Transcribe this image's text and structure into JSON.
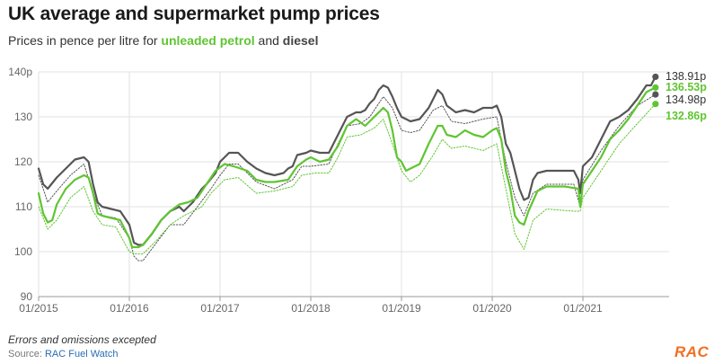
{
  "header": {
    "title": "UK average and supermarket pump prices",
    "subtitle_prefix": "Prices in pence per litre for ",
    "subtitle_petrol": "unleaded petrol",
    "subtitle_mid": " and ",
    "subtitle_diesel": "diesel"
  },
  "footer": {
    "note": "Errors and omissions excepted",
    "source_prefix": "Source: ",
    "source_link": "RAC Fuel Watch",
    "logo": "RAC"
  },
  "colors": {
    "diesel": "#555555",
    "petrol": "#5fc531",
    "grid": "#e2e2e2",
    "axis_text": "#666666"
  },
  "chart_data": {
    "type": "line",
    "xlim": [
      2015.0,
      2021.95
    ],
    "ylim": [
      90,
      140
    ],
    "x_ticks": [
      2015,
      2016,
      2017,
      2018,
      2019,
      2020,
      2021
    ],
    "x_tick_labels": [
      "01/2015",
      "01/2016",
      "01/2017",
      "01/2018",
      "01/2019",
      "01/2020",
      "01/2021"
    ],
    "y_ticks": [
      90,
      100,
      110,
      120,
      130,
      140
    ],
    "y_tick_labels": [
      "90",
      "100",
      "110",
      "120",
      "130",
      "140p"
    ],
    "grid": true,
    "end_labels": [
      {
        "text": "138.91p",
        "value": 138.91,
        "color": "#333333",
        "bold": false
      },
      {
        "text": "136.53p",
        "value": 136.53,
        "color": "#5fc531",
        "bold": true
      },
      {
        "text": "134.98p",
        "value": 134.98,
        "color": "#333333",
        "bold": false
      },
      {
        "text": "132.86p",
        "value": 132.86,
        "color": "#5fc531",
        "bold": true
      }
    ],
    "series": [
      {
        "key": "diesel_avg",
        "color": "#555555",
        "style": "solid",
        "width": 2.2,
        "points": [
          [
            2015.0,
            118.5
          ],
          [
            2015.05,
            115
          ],
          [
            2015.1,
            114
          ],
          [
            2015.2,
            116.5
          ],
          [
            2015.3,
            118.5
          ],
          [
            2015.4,
            120.5
          ],
          [
            2015.5,
            121
          ],
          [
            2015.55,
            120
          ],
          [
            2015.6,
            115
          ],
          [
            2015.65,
            111
          ],
          [
            2015.7,
            110
          ],
          [
            2015.8,
            109.5
          ],
          [
            2015.9,
            109
          ],
          [
            2016.0,
            106
          ],
          [
            2016.05,
            102
          ],
          [
            2016.1,
            101.5
          ],
          [
            2016.15,
            101.5
          ],
          [
            2016.25,
            104
          ],
          [
            2016.35,
            107
          ],
          [
            2016.45,
            109
          ],
          [
            2016.55,
            110
          ],
          [
            2016.6,
            109
          ],
          [
            2016.7,
            111
          ],
          [
            2016.8,
            114
          ],
          [
            2016.85,
            115
          ],
          [
            2016.95,
            117.5
          ],
          [
            2017.0,
            120
          ],
          [
            2017.1,
            122
          ],
          [
            2017.2,
            122
          ],
          [
            2017.3,
            120
          ],
          [
            2017.4,
            118.5
          ],
          [
            2017.5,
            117.5
          ],
          [
            2017.6,
            117
          ],
          [
            2017.7,
            117.5
          ],
          [
            2017.75,
            118.5
          ],
          [
            2017.8,
            119
          ],
          [
            2017.85,
            121.5
          ],
          [
            2017.95,
            122
          ],
          [
            2018.0,
            122.5
          ],
          [
            2018.1,
            122
          ],
          [
            2018.2,
            122
          ],
          [
            2018.3,
            126
          ],
          [
            2018.4,
            130
          ],
          [
            2018.5,
            131
          ],
          [
            2018.55,
            131
          ],
          [
            2018.6,
            131.5
          ],
          [
            2018.65,
            133
          ],
          [
            2018.7,
            134
          ],
          [
            2018.75,
            136
          ],
          [
            2018.8,
            137
          ],
          [
            2018.85,
            136.5
          ],
          [
            2018.9,
            134.5
          ],
          [
            2018.95,
            132
          ],
          [
            2019.0,
            130
          ],
          [
            2019.1,
            129
          ],
          [
            2019.2,
            129.5
          ],
          [
            2019.3,
            132
          ],
          [
            2019.35,
            134
          ],
          [
            2019.4,
            136
          ],
          [
            2019.45,
            135
          ],
          [
            2019.5,
            132.5
          ],
          [
            2019.6,
            131
          ],
          [
            2019.7,
            131.5
          ],
          [
            2019.8,
            131
          ],
          [
            2019.9,
            132
          ],
          [
            2020.0,
            132
          ],
          [
            2020.05,
            132.5
          ],
          [
            2020.1,
            130
          ],
          [
            2020.15,
            124
          ],
          [
            2020.2,
            122
          ],
          [
            2020.25,
            118
          ],
          [
            2020.3,
            114
          ],
          [
            2020.35,
            111.5
          ],
          [
            2020.4,
            112
          ],
          [
            2020.45,
            116
          ],
          [
            2020.5,
            117.5
          ],
          [
            2020.6,
            118
          ],
          [
            2020.7,
            118
          ],
          [
            2020.8,
            118
          ],
          [
            2020.9,
            118
          ],
          [
            2020.95,
            116
          ],
          [
            2020.97,
            113
          ],
          [
            2021.0,
            119
          ],
          [
            2021.1,
            121
          ],
          [
            2021.2,
            125
          ],
          [
            2021.3,
            129
          ],
          [
            2021.4,
            130
          ],
          [
            2021.5,
            131.5
          ],
          [
            2021.6,
            134
          ],
          [
            2021.7,
            137
          ],
          [
            2021.75,
            137
          ],
          [
            2021.8,
            138.91
          ]
        ]
      },
      {
        "key": "diesel_supermarket",
        "color": "#555555",
        "style": "dotted",
        "width": 1,
        "points": [
          [
            2015.0,
            117
          ],
          [
            2015.1,
            111
          ],
          [
            2015.2,
            113.5
          ],
          [
            2015.35,
            117
          ],
          [
            2015.5,
            119.5
          ],
          [
            2015.6,
            113
          ],
          [
            2015.7,
            108
          ],
          [
            2015.85,
            107.5
          ],
          [
            2016.0,
            103
          ],
          [
            2016.05,
            99
          ],
          [
            2016.1,
            98
          ],
          [
            2016.15,
            98
          ],
          [
            2016.3,
            102
          ],
          [
            2016.45,
            106
          ],
          [
            2016.6,
            106
          ],
          [
            2016.75,
            110
          ],
          [
            2016.9,
            114
          ],
          [
            2017.0,
            117
          ],
          [
            2017.1,
            119.5
          ],
          [
            2017.2,
            119.5
          ],
          [
            2017.4,
            115.5
          ],
          [
            2017.6,
            114
          ],
          [
            2017.8,
            116
          ],
          [
            2017.9,
            119
          ],
          [
            2018.0,
            119
          ],
          [
            2018.2,
            119.5
          ],
          [
            2018.3,
            124
          ],
          [
            2018.4,
            128
          ],
          [
            2018.55,
            128.5
          ],
          [
            2018.65,
            130
          ],
          [
            2018.8,
            134.5
          ],
          [
            2018.9,
            132
          ],
          [
            2019.0,
            127
          ],
          [
            2019.1,
            126.5
          ],
          [
            2019.2,
            127
          ],
          [
            2019.35,
            131.5
          ],
          [
            2019.45,
            132.5
          ],
          [
            2019.55,
            129
          ],
          [
            2019.7,
            128.5
          ],
          [
            2019.9,
            129.5
          ],
          [
            2020.05,
            130
          ],
          [
            2020.15,
            120
          ],
          [
            2020.25,
            112
          ],
          [
            2020.35,
            108
          ],
          [
            2020.45,
            113
          ],
          [
            2020.6,
            115
          ],
          [
            2020.9,
            115
          ],
          [
            2020.97,
            110
          ],
          [
            2021.0,
            116
          ],
          [
            2021.2,
            122.5
          ],
          [
            2021.4,
            128
          ],
          [
            2021.6,
            132.5
          ],
          [
            2021.8,
            134.98
          ]
        ]
      },
      {
        "key": "petrol_avg",
        "color": "#5fc531",
        "style": "solid",
        "width": 2.2,
        "points": [
          [
            2015.0,
            113
          ],
          [
            2015.05,
            108.5
          ],
          [
            2015.1,
            106.5
          ],
          [
            2015.15,
            107
          ],
          [
            2015.2,
            110.5
          ],
          [
            2015.3,
            114
          ],
          [
            2015.4,
            116
          ],
          [
            2015.5,
            117
          ],
          [
            2015.55,
            116.5
          ],
          [
            2015.6,
            113
          ],
          [
            2015.65,
            108.5
          ],
          [
            2015.7,
            108
          ],
          [
            2015.8,
            107.5
          ],
          [
            2015.9,
            107
          ],
          [
            2016.0,
            103
          ],
          [
            2016.03,
            101
          ],
          [
            2016.1,
            101
          ],
          [
            2016.15,
            101.5
          ],
          [
            2016.25,
            104
          ],
          [
            2016.35,
            107
          ],
          [
            2016.45,
            109
          ],
          [
            2016.55,
            110.5
          ],
          [
            2016.65,
            111
          ],
          [
            2016.75,
            112
          ],
          [
            2016.85,
            115
          ],
          [
            2016.95,
            118
          ],
          [
            2017.05,
            119.5
          ],
          [
            2017.15,
            119
          ],
          [
            2017.3,
            118
          ],
          [
            2017.4,
            116
          ],
          [
            2017.5,
            115.5
          ],
          [
            2017.6,
            115.5
          ],
          [
            2017.75,
            116
          ],
          [
            2017.85,
            119
          ],
          [
            2017.95,
            120.5
          ],
          [
            2018.0,
            121
          ],
          [
            2018.1,
            120
          ],
          [
            2018.2,
            120.5
          ],
          [
            2018.3,
            123.5
          ],
          [
            2018.4,
            128
          ],
          [
            2018.5,
            129.5
          ],
          [
            2018.6,
            128
          ],
          [
            2018.7,
            130
          ],
          [
            2018.8,
            132
          ],
          [
            2018.85,
            131
          ],
          [
            2018.9,
            127
          ],
          [
            2018.95,
            121
          ],
          [
            2019.0,
            120
          ],
          [
            2019.05,
            118
          ],
          [
            2019.1,
            118.5
          ],
          [
            2019.2,
            119.5
          ],
          [
            2019.3,
            124
          ],
          [
            2019.4,
            128
          ],
          [
            2019.45,
            128
          ],
          [
            2019.5,
            126
          ],
          [
            2019.6,
            125.5
          ],
          [
            2019.7,
            127
          ],
          [
            2019.8,
            126
          ],
          [
            2019.9,
            125.5
          ],
          [
            2020.0,
            127
          ],
          [
            2020.05,
            127.5
          ],
          [
            2020.1,
            125
          ],
          [
            2020.15,
            118
          ],
          [
            2020.2,
            114
          ],
          [
            2020.25,
            108
          ],
          [
            2020.3,
            106.5
          ],
          [
            2020.35,
            106
          ],
          [
            2020.4,
            109
          ],
          [
            2020.5,
            113.5
          ],
          [
            2020.6,
            114.5
          ],
          [
            2020.8,
            114.5
          ],
          [
            2020.95,
            114
          ],
          [
            2020.97,
            110
          ],
          [
            2021.0,
            115
          ],
          [
            2021.2,
            121
          ],
          [
            2021.3,
            125
          ],
          [
            2021.4,
            127
          ],
          [
            2021.5,
            129.5
          ],
          [
            2021.6,
            132.5
          ],
          [
            2021.7,
            135.5
          ],
          [
            2021.8,
            136.53
          ]
        ]
      },
      {
        "key": "petrol_supermarket",
        "color": "#5fc531",
        "style": "dotted",
        "width": 1,
        "points": [
          [
            2015.0,
            110
          ],
          [
            2015.1,
            105
          ],
          [
            2015.2,
            107
          ],
          [
            2015.35,
            112
          ],
          [
            2015.5,
            114.5
          ],
          [
            2015.6,
            109
          ],
          [
            2015.7,
            106
          ],
          [
            2015.85,
            105.5
          ],
          [
            2016.0,
            100
          ],
          [
            2016.05,
            99.5
          ],
          [
            2016.15,
            99.5
          ],
          [
            2016.3,
            102.5
          ],
          [
            2016.45,
            106
          ],
          [
            2016.6,
            108
          ],
          [
            2016.8,
            110
          ],
          [
            2016.9,
            113
          ],
          [
            2017.05,
            116
          ],
          [
            2017.2,
            116.5
          ],
          [
            2017.4,
            113
          ],
          [
            2017.6,
            113.5
          ],
          [
            2017.8,
            114.5
          ],
          [
            2017.9,
            117
          ],
          [
            2018.05,
            117.5
          ],
          [
            2018.2,
            117.5
          ],
          [
            2018.3,
            121
          ],
          [
            2018.4,
            125.5
          ],
          [
            2018.55,
            126
          ],
          [
            2018.7,
            127.5
          ],
          [
            2018.8,
            129.5
          ],
          [
            2018.9,
            124
          ],
          [
            2019.0,
            118
          ],
          [
            2019.1,
            115.5
          ],
          [
            2019.2,
            117
          ],
          [
            2019.35,
            121.5
          ],
          [
            2019.45,
            125
          ],
          [
            2019.55,
            123
          ],
          [
            2019.7,
            123.5
          ],
          [
            2019.9,
            122.5
          ],
          [
            2020.05,
            124
          ],
          [
            2020.15,
            114
          ],
          [
            2020.25,
            104
          ],
          [
            2020.35,
            100.5
          ],
          [
            2020.45,
            107
          ],
          [
            2020.6,
            109.5
          ],
          [
            2020.9,
            109
          ],
          [
            2020.97,
            109
          ],
          [
            2021.0,
            112
          ],
          [
            2021.2,
            118
          ],
          [
            2021.4,
            124
          ],
          [
            2021.6,
            128.5
          ],
          [
            2021.8,
            132.86
          ]
        ]
      }
    ]
  }
}
